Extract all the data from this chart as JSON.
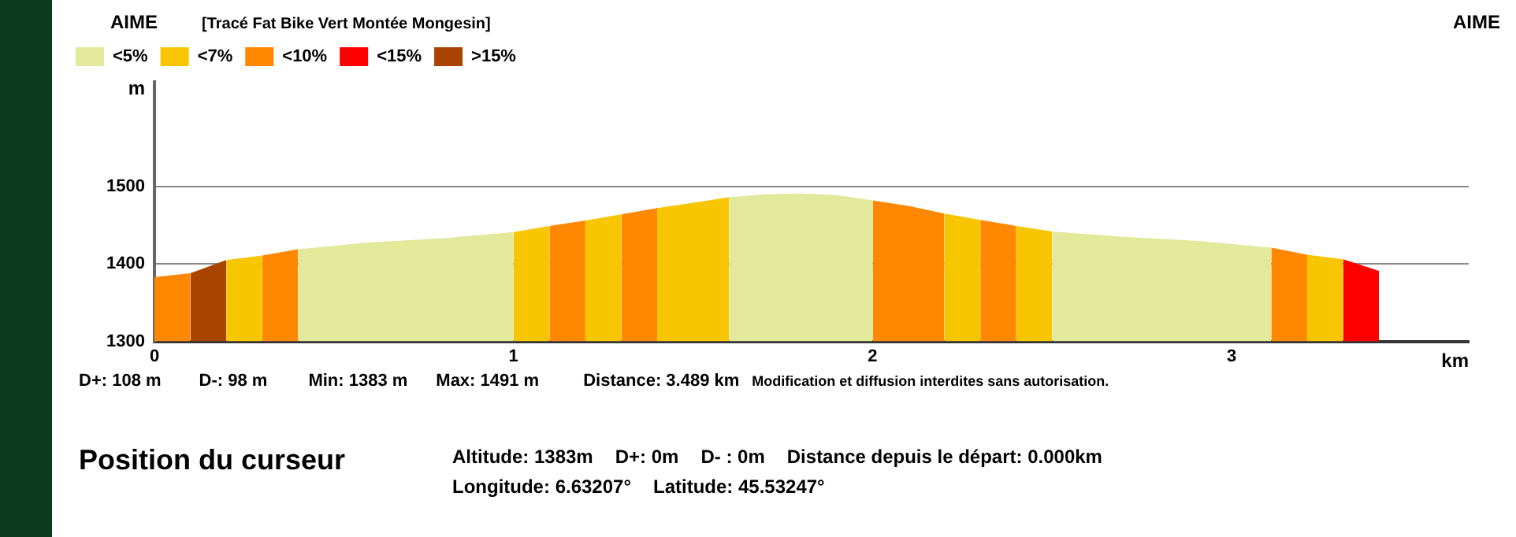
{
  "chart_data": {
    "type": "area",
    "title": "[Tracé Fat Bike Vert Montée Mongesin]",
    "xlabel": "km",
    "ylabel": "m",
    "xlim": [
      0,
      3.66
    ],
    "xticks": [
      0,
      1,
      2,
      3
    ],
    "ylim": [
      1300,
      1635
    ],
    "yticks": [
      1300,
      1400,
      1500
    ],
    "grid": "y",
    "legend": "top left",
    "series": [
      {
        "name": "<5%",
        "color": "#e2e99b",
        "x": [
          0.4,
          0.6,
          0.8,
          1.0,
          1.3,
          1.6,
          1.7,
          1.8,
          1.9,
          2.0,
          2.25,
          2.5,
          2.7,
          2.9,
          3.11
        ],
        "values": [
          1419,
          1428,
          1433,
          1441,
          null,
          1486,
          1490,
          1491,
          1489,
          1482,
          null,
          1442,
          1435,
          1430,
          1421
        ]
      },
      {
        "name": "<7%",
        "color": "#f8c600",
        "x": [
          0.2,
          0.3,
          0.65,
          1.0,
          1.1,
          1.15,
          1.2,
          1.3,
          1.35,
          1.4,
          1.5,
          1.6,
          1.9,
          2.2,
          2.3,
          2.35,
          2.4,
          2.5,
          2.85,
          3.21,
          3.31
        ],
        "values": [
          1405,
          1411,
          null,
          1441,
          1449,
          null,
          1456,
          1464,
          null,
          1472,
          1479,
          1486,
          null,
          1465,
          1457,
          null,
          1449,
          1442,
          null,
          1412,
          1406
        ]
      },
      {
        "name": "<10%",
        "color": "#ff8800",
        "x": [
          0,
          0.1,
          0.2,
          0.3,
          0.4,
          0.75,
          1.1,
          1.2,
          1.25,
          1.3,
          1.4,
          1.7,
          2.0,
          2.1,
          2.2,
          2.25,
          2.3,
          2.4,
          2.75,
          3.11,
          3.21
        ],
        "values": [
          1383,
          1388,
          null,
          1411,
          1419,
          null,
          1449,
          1456,
          null,
          1464,
          1472,
          null,
          1482,
          1475,
          1465,
          null,
          1457,
          1449,
          null,
          1421,
          1412
        ]
      },
      {
        "name": "<15%",
        "color": "#ff0000",
        "x": [
          3.31,
          3.41
        ],
        "values": [
          1406,
          1391
        ]
      },
      {
        "name": ">15%",
        "color": "#a84300",
        "x": [
          0.1,
          0.2
        ],
        "values": [
          1388,
          1405
        ]
      }
    ],
    "annotations": [
      "AIME",
      "AIME",
      "D+: 108 m",
      "D-: 98 m",
      "Min: 1383 m",
      "Max: 1491 m",
      "Distance: 3.489 km",
      "Modification et diffusion interdites sans autorisation.",
      "Position du curseur",
      "Altitude: 1383m",
      "D+: 0m",
      "D- : 0m",
      "Distance depuis le départ: 0.000km",
      "Longitude: 6.63207°",
      "Latitude: 45.53247°"
    ]
  }
}
